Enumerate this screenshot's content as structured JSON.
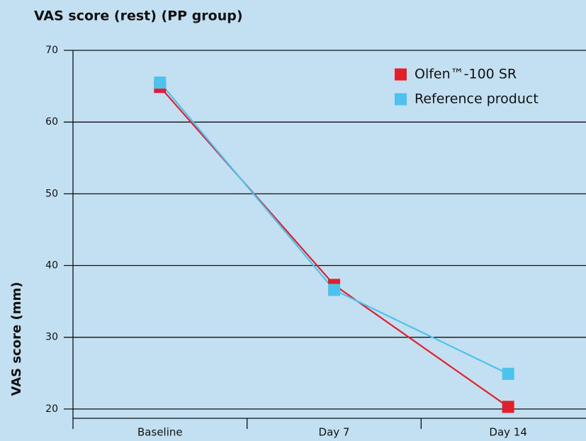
{
  "chart_data": {
    "type": "line",
    "title": "VAS score (rest) (PP group)",
    "y_label": "VAS score (mm)",
    "categories": [
      "Baseline",
      "Day 7",
      "Day 14"
    ],
    "series": [
      {
        "name": "Olfen™-100 SR",
        "color": "#e2202c",
        "values": [
          64.9,
          37.3,
          20.3
        ]
      },
      {
        "name": "Reference product",
        "color": "#4cc2ee",
        "values": [
          65.5,
          36.6,
          24.9
        ]
      }
    ],
    "ylim": [
      18.7,
      70
    ],
    "yticks": [
      20,
      30,
      40,
      50,
      60,
      70
    ],
    "grid": true,
    "legend": "upper right"
  }
}
